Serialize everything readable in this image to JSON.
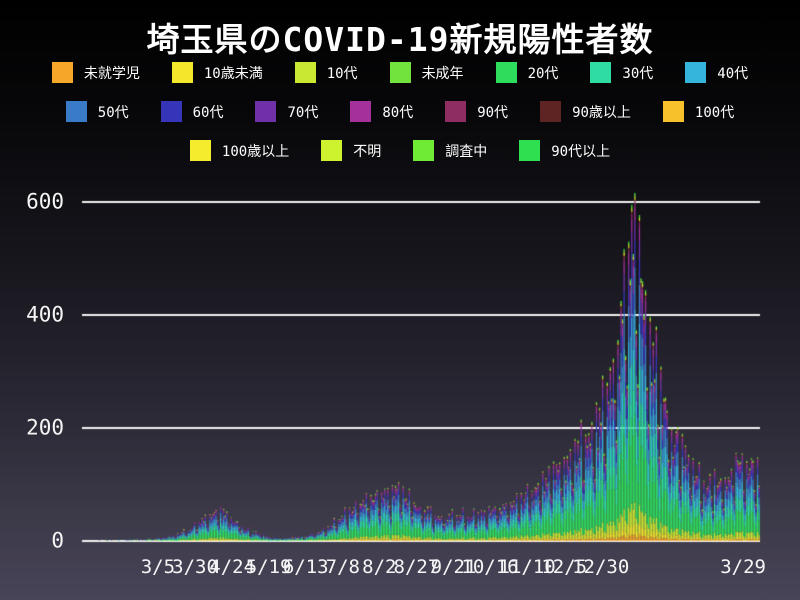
{
  "chart_data": {
    "type": "stacked-bar",
    "title": "埼玉県のCOVID-19新規陽性者数",
    "ylabel": "",
    "xlabel": "",
    "grid": "horizontal",
    "grid_color": "#f0f0f0",
    "text_color": "#f5f5f5",
    "y_ticks": [
      0,
      200,
      400,
      600
    ],
    "ylim": [
      0,
      640
    ],
    "x_ticks": [
      {
        "label": "3/5",
        "f": 0.108
      },
      {
        "label": "3/30",
        "f": 0.163
      },
      {
        "label": "4/24",
        "f": 0.218
      },
      {
        "label": "5/19",
        "f": 0.272
      },
      {
        "label": "6/13",
        "f": 0.327
      },
      {
        "label": "7/8",
        "f": 0.382
      },
      {
        "label": "8/2",
        "f": 0.436
      },
      {
        "label": "8/27",
        "f": 0.491
      },
      {
        "label": "9/21",
        "f": 0.546
      },
      {
        "label": "10/16",
        "f": 0.6
      },
      {
        "label": "11/10",
        "f": 0.655
      },
      {
        "label": "12/5",
        "f": 0.71
      },
      {
        "label": "12/30",
        "f": 0.764
      },
      {
        "label": "3/29",
        "f": 0.975
      }
    ],
    "days": 440,
    "envelope_keypoints": [
      [
        0,
        0
      ],
      [
        20,
        0.6
      ],
      [
        35,
        1.5
      ],
      [
        48,
        4
      ],
      [
        58,
        10
      ],
      [
        68,
        22
      ],
      [
        78,
        42
      ],
      [
        86,
        58
      ],
      [
        92,
        50
      ],
      [
        100,
        30
      ],
      [
        108,
        16
      ],
      [
        118,
        8
      ],
      [
        128,
        5
      ],
      [
        138,
        6
      ],
      [
        148,
        11
      ],
      [
        158,
        24
      ],
      [
        166,
        42
      ],
      [
        176,
        62
      ],
      [
        186,
        78
      ],
      [
        196,
        85
      ],
      [
        204,
        92
      ],
      [
        212,
        72
      ],
      [
        220,
        58
      ],
      [
        228,
        46
      ],
      [
        236,
        42
      ],
      [
        244,
        50
      ],
      [
        252,
        44
      ],
      [
        260,
        52
      ],
      [
        268,
        58
      ],
      [
        276,
        64
      ],
      [
        284,
        76
      ],
      [
        292,
        96
      ],
      [
        300,
        115
      ],
      [
        308,
        135
      ],
      [
        314,
        150
      ],
      [
        322,
        172
      ],
      [
        330,
        195
      ],
      [
        338,
        240
      ],
      [
        344,
        310
      ],
      [
        350,
        430
      ],
      [
        355,
        520
      ],
      [
        358,
        560
      ],
      [
        360,
        510
      ],
      [
        361,
        520
      ],
      [
        364,
        430
      ],
      [
        368,
        360
      ],
      [
        372,
        305
      ],
      [
        376,
        258
      ],
      [
        381,
        212
      ],
      [
        386,
        178
      ],
      [
        392,
        148
      ],
      [
        398,
        120
      ],
      [
        404,
        98
      ],
      [
        410,
        108
      ],
      [
        416,
        100
      ],
      [
        421,
        130
      ],
      [
        425,
        150
      ],
      [
        429,
        118
      ],
      [
        434,
        138
      ],
      [
        440,
        128
      ]
    ],
    "weekday_factors": [
      0.95,
      1.12,
      0.7,
      0.55,
      1.05,
      0.85,
      1.0
    ],
    "noise": {
      "seed": 5,
      "min": 0.88,
      "span": 0.24
    },
    "clamp_max": 618,
    "series": [
      {
        "name": "未就学児",
        "color": "#F4A728",
        "share": 0.02
      },
      {
        "name": "10歳未満",
        "color": "#F4E62A",
        "share": 0.03
      },
      {
        "name": "10代",
        "color": "#C8E831",
        "share": 0.06
      },
      {
        "name": "未成年",
        "color": "#71E33C",
        "share": 0.004
      },
      {
        "name": "20代",
        "color": "#2FDD5D",
        "share": 0.25
      },
      {
        "name": "30代",
        "color": "#2EDCA4",
        "share": 0.16
      },
      {
        "name": "40代",
        "color": "#34B6DC",
        "share": 0.14
      },
      {
        "name": "50代",
        "color": "#3A7BC8",
        "share": 0.12
      },
      {
        "name": "60代",
        "color": "#3634B8",
        "share": 0.075
      },
      {
        "name": "70代",
        "color": "#7031A8",
        "share": 0.06
      },
      {
        "name": "80代",
        "color": "#A3309B",
        "share": 0.04
      },
      {
        "name": "90代",
        "color": "#8E2D62",
        "share": 0.015
      },
      {
        "name": "90歳以上",
        "color": "#5E2424",
        "share": 0.004
      },
      {
        "name": "100代",
        "color": "#F6C12B",
        "share": 0.002
      },
      {
        "name": "100歳以上",
        "color": "#F4EC2C",
        "share": 0.003
      },
      {
        "name": "不明",
        "color": "#CDF32F",
        "share": 0.007
      },
      {
        "name": "調査中",
        "color": "#6FEB36",
        "share": 0.006
      },
      {
        "name": "90代以上",
        "color": "#2EE04F",
        "share": 0.004
      }
    ]
  },
  "legend": {
    "rows": [
      [
        {
          "label": "未就学児",
          "color": "#F4A728"
        },
        {
          "label": "10歳未満",
          "color": "#F4E62A"
        },
        {
          "label": "10代",
          "color": "#C8E831"
        },
        {
          "label": "未成年",
          "color": "#71E33C"
        },
        {
          "label": "20代",
          "color": "#2FDD5D"
        },
        {
          "label": "30代",
          "color": "#2EDCA4"
        },
        {
          "label": "40代",
          "color": "#34B6DC"
        }
      ],
      [
        {
          "label": "50代",
          "color": "#3A7BC8"
        },
        {
          "label": "60代",
          "color": "#3634B8"
        },
        {
          "label": "70代",
          "color": "#7031A8"
        },
        {
          "label": "80代",
          "color": "#A3309B"
        },
        {
          "label": "90代",
          "color": "#8E2D62"
        },
        {
          "label": "90歳以上",
          "color": "#5E2424"
        },
        {
          "label": "100代",
          "color": "#F6C12B"
        }
      ],
      [
        {
          "label": "100歳以上",
          "color": "#F4EC2C"
        },
        {
          "label": "不明",
          "color": "#CDF32F"
        },
        {
          "label": "調査中",
          "color": "#6FEB36"
        },
        {
          "label": "90代以上",
          "color": "#2EE04F"
        }
      ]
    ]
  }
}
